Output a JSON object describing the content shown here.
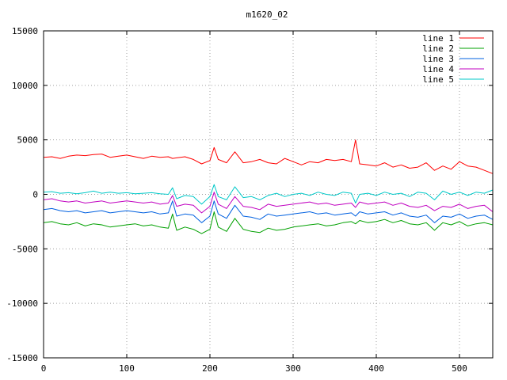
{
  "chart_data": {
    "type": "line",
    "title": "m1620_02",
    "xlabel": "",
    "ylabel": "",
    "xlim": [
      0,
      540
    ],
    "ylim": [
      -15000,
      15000
    ],
    "x_ticks": [
      0,
      100,
      200,
      300,
      400,
      500
    ],
    "y_ticks": [
      -15000,
      -10000,
      -5000,
      0,
      5000,
      10000,
      15000
    ],
    "grid": true,
    "legend_position": "top-right",
    "x": [
      0,
      10,
      20,
      30,
      40,
      50,
      60,
      70,
      80,
      90,
      100,
      110,
      120,
      130,
      140,
      150,
      155,
      160,
      170,
      180,
      190,
      200,
      205,
      210,
      220,
      230,
      240,
      250,
      260,
      270,
      280,
      290,
      300,
      310,
      320,
      330,
      340,
      350,
      360,
      370,
      375,
      380,
      390,
      400,
      410,
      420,
      430,
      440,
      450,
      460,
      470,
      480,
      490,
      500,
      510,
      520,
      530,
      540
    ],
    "series": [
      {
        "name": "line 1",
        "color": "#ff0000",
        "values": [
          3400,
          3450,
          3300,
          3500,
          3600,
          3550,
          3650,
          3700,
          3400,
          3500,
          3600,
          3450,
          3300,
          3500,
          3400,
          3450,
          3300,
          3350,
          3450,
          3200,
          2800,
          3100,
          4300,
          3200,
          2900,
          3900,
          2900,
          3000,
          3200,
          2900,
          2800,
          3300,
          3000,
          2700,
          3000,
          2900,
          3200,
          3100,
          3200,
          3000,
          5000,
          2800,
          2700,
          2600,
          2900,
          2500,
          2700,
          2400,
          2500,
          2900,
          2200,
          2600,
          2300,
          3000,
          2600,
          2500,
          2200,
          1900
        ]
      },
      {
        "name": "line 2",
        "color": "#00a000",
        "values": [
          -2600,
          -2500,
          -2700,
          -2800,
          -2600,
          -2900,
          -2700,
          -2800,
          -3000,
          -2900,
          -2800,
          -2700,
          -2900,
          -2800,
          -3000,
          -3100,
          -1800,
          -3300,
          -3000,
          -3200,
          -3600,
          -3200,
          -1600,
          -3000,
          -3400,
          -2200,
          -3200,
          -3400,
          -3500,
          -3100,
          -3300,
          -3200,
          -3000,
          -2900,
          -2800,
          -2700,
          -2900,
          -2800,
          -2600,
          -2500,
          -2700,
          -2400,
          -2600,
          -2500,
          -2300,
          -2600,
          -2400,
          -2700,
          -2800,
          -2600,
          -3300,
          -2600,
          -2800,
          -2500,
          -2900,
          -2700,
          -2600,
          -2800
        ]
      },
      {
        "name": "line 3",
        "color": "#0060e0",
        "values": [
          -1400,
          -1300,
          -1500,
          -1600,
          -1500,
          -1700,
          -1600,
          -1500,
          -1700,
          -1600,
          -1500,
          -1600,
          -1700,
          -1600,
          -1800,
          -1700,
          -600,
          -2000,
          -1800,
          -1900,
          -2600,
          -2000,
          -600,
          -1800,
          -2200,
          -1000,
          -2000,
          -2100,
          -2300,
          -1800,
          -2000,
          -1900,
          -1800,
          -1700,
          -1600,
          -1800,
          -1700,
          -1900,
          -1800,
          -1700,
          -2000,
          -1600,
          -1800,
          -1700,
          -1600,
          -1900,
          -1700,
          -2000,
          -2100,
          -1900,
          -2600,
          -2000,
          -2100,
          -1800,
          -2200,
          -2000,
          -1900,
          -2300
        ]
      },
      {
        "name": "line 4",
        "color": "#c000c0",
        "values": [
          -500,
          -400,
          -600,
          -700,
          -600,
          -800,
          -700,
          -600,
          -800,
          -700,
          -600,
          -700,
          -800,
          -700,
          -900,
          -800,
          -100,
          -1100,
          -900,
          -1000,
          -1700,
          -1100,
          200,
          -900,
          -1300,
          -200,
          -1100,
          -1200,
          -1400,
          -900,
          -1100,
          -1000,
          -900,
          -800,
          -700,
          -900,
          -800,
          -1000,
          -900,
          -800,
          -1200,
          -700,
          -900,
          -800,
          -700,
          -1000,
          -800,
          -1100,
          -1200,
          -1000,
          -1500,
          -1100,
          -1200,
          -900,
          -1300,
          -1100,
          -1000,
          -1600
        ]
      },
      {
        "name": "line 5",
        "color": "#00c8c8",
        "values": [
          200,
          250,
          100,
          150,
          50,
          150,
          300,
          100,
          200,
          100,
          150,
          50,
          100,
          150,
          50,
          0,
          600,
          -400,
          -100,
          -200,
          -900,
          -200,
          900,
          -200,
          -500,
          700,
          -300,
          -200,
          -500,
          -100,
          100,
          -200,
          0,
          100,
          -100,
          200,
          0,
          -100,
          200,
          100,
          -800,
          0,
          100,
          -100,
          200,
          0,
          100,
          -200,
          200,
          100,
          -500,
          300,
          0,
          200,
          -100,
          200,
          100,
          400
        ]
      }
    ]
  }
}
